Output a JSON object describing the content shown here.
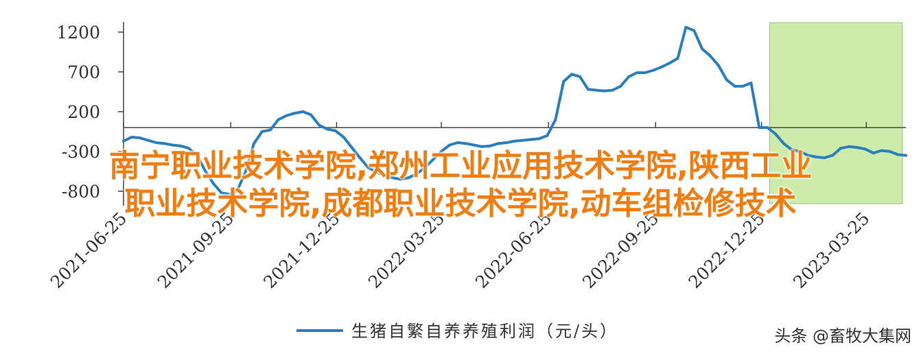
{
  "chart_data": {
    "type": "line",
    "title": "",
    "xlabel": "",
    "ylabel": "",
    "yticks": [
      "1200",
      "700",
      "200",
      "-300",
      "-800"
    ],
    "ylim": [
      -1000,
      1330
    ],
    "xticks": [
      "2021-06-25",
      "2021-09-25",
      "2021-12-25",
      "2022-03-25",
      "2022-06-25",
      "2022-09-25",
      "2022-12-25",
      "2023-03-25"
    ],
    "x_start": "2021-06-25",
    "x_end": "2023-04-28",
    "grid": false,
    "shaded_region": {
      "from": "2023-01-01",
      "to": "2023-04-25",
      "color": "#c9eba0"
    },
    "series": [
      {
        "name": "生猪自繁自养养殖利润（元/头）",
        "color": "#2a7fbf",
        "x": [
          "2021-06-25",
          "2021-07-02",
          "2021-07-09",
          "2021-07-16",
          "2021-07-23",
          "2021-07-30",
          "2021-08-06",
          "2021-08-13",
          "2021-08-20",
          "2021-08-27",
          "2021-09-03",
          "2021-09-10",
          "2021-09-17",
          "2021-09-24",
          "2021-10-01",
          "2021-10-08",
          "2021-10-15",
          "2021-10-22",
          "2021-10-29",
          "2021-11-05",
          "2021-11-12",
          "2021-11-19",
          "2021-11-26",
          "2021-12-03",
          "2021-12-10",
          "2021-12-17",
          "2021-12-24",
          "2021-12-31",
          "2022-01-07",
          "2022-01-14",
          "2022-01-21",
          "2022-01-28",
          "2022-02-04",
          "2022-02-11",
          "2022-02-18",
          "2022-02-25",
          "2022-03-04",
          "2022-03-11",
          "2022-03-18",
          "2022-03-25",
          "2022-04-01",
          "2022-04-08",
          "2022-04-15",
          "2022-04-22",
          "2022-04-29",
          "2022-05-06",
          "2022-05-13",
          "2022-05-20",
          "2022-05-27",
          "2022-06-03",
          "2022-06-10",
          "2022-06-17",
          "2022-06-24",
          "2022-07-01",
          "2022-07-08",
          "2022-07-15",
          "2022-07-22",
          "2022-07-29",
          "2022-08-05",
          "2022-08-12",
          "2022-08-19",
          "2022-08-26",
          "2022-09-02",
          "2022-09-09",
          "2022-09-16",
          "2022-09-23",
          "2022-09-30",
          "2022-10-07",
          "2022-10-14",
          "2022-10-21",
          "2022-10-28",
          "2022-11-04",
          "2022-11-11",
          "2022-11-18",
          "2022-11-25",
          "2022-12-02",
          "2022-12-09",
          "2022-12-16",
          "2022-12-23",
          "2022-12-30",
          "2023-01-06",
          "2023-01-13",
          "2023-01-20",
          "2023-01-27",
          "2023-02-03",
          "2023-02-10",
          "2023-02-17",
          "2023-02-24",
          "2023-03-03",
          "2023-03-10",
          "2023-03-17",
          "2023-03-24",
          "2023-03-31",
          "2023-04-07",
          "2023-04-14",
          "2023-04-21",
          "2023-04-28"
        ],
        "values": [
          -170,
          -120,
          -130,
          -160,
          -190,
          -200,
          -220,
          -230,
          -260,
          -350,
          -540,
          -700,
          -820,
          -840,
          -780,
          -550,
          -200,
          -50,
          -30,
          100,
          150,
          180,
          200,
          160,
          30,
          -20,
          -40,
          -120,
          -250,
          -380,
          -500,
          -560,
          -600,
          -630,
          -650,
          -630,
          -580,
          -500,
          -400,
          -300,
          -220,
          -190,
          -200,
          -220,
          -240,
          -230,
          -200,
          -190,
          -170,
          -160,
          -150,
          -140,
          -100,
          100,
          580,
          670,
          640,
          480,
          470,
          460,
          470,
          520,
          640,
          690,
          690,
          720,
          760,
          810,
          870,
          1260,
          1220,
          990,
          900,
          780,
          600,
          520,
          520,
          560,
          0,
          0,
          -80,
          -200,
          -280,
          -300,
          -350,
          -370,
          -380,
          -350,
          -260,
          -240,
          -250,
          -270,
          -320,
          -290,
          -300,
          -340,
          -350
        ]
      }
    ],
    "legend": {
      "placement": "bottom-center",
      "label": "生猪自繁自养养殖利润（元/头）"
    }
  },
  "overlay": {
    "line1": "南宁职业技术学院,郑州工业应用技术学院,陕西工业",
    "line2": "职业技术学院,成都职业技术学院,动车组检修技术"
  },
  "watermark": "头条 @畜牧大集网"
}
